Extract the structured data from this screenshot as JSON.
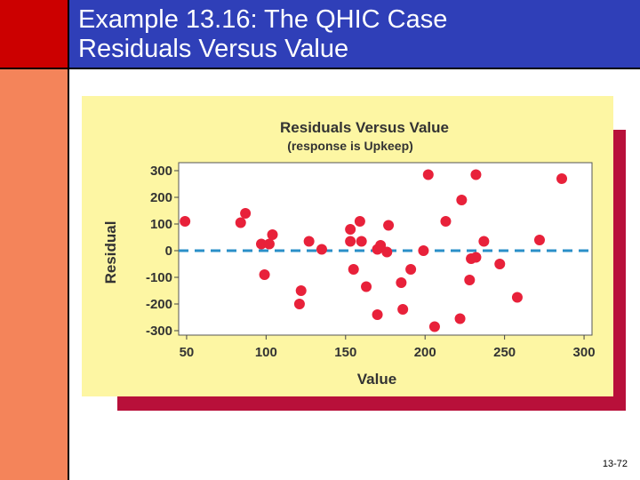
{
  "slide": {
    "title_line1": "Example 13.16: The QHIC Case",
    "title_line2": "Residuals Versus Value",
    "page_number": "13-72"
  },
  "colors": {
    "corner": "#cc0000",
    "left_bar": "#f4845a",
    "title_bar": "#2f3fb8",
    "panel_fill": "#fdf6a3",
    "panel_shadow": "#b8103a",
    "points": "#e8213a",
    "zero_line": "#2a8fc8"
  },
  "chart_data": {
    "type": "scatter",
    "title": "Residuals Versus Value",
    "subtitle": "(response is Upkeep)",
    "xlabel": "Value",
    "ylabel": "Residual",
    "xlim": [
      45,
      305
    ],
    "ylim": [
      -325,
      320
    ],
    "xticks": [
      50,
      100,
      150,
      200,
      250,
      300
    ],
    "yticks": [
      300,
      200,
      100,
      0,
      -100,
      -200,
      -300
    ],
    "ytick_labels": [
      "300",
      "200",
      "100",
      "0",
      "-100",
      "-200",
      "-300"
    ],
    "reference_line_y": 0,
    "grid": false,
    "points": [
      {
        "x": 49,
        "y": 110
      },
      {
        "x": 84,
        "y": 105
      },
      {
        "x": 87,
        "y": 140
      },
      {
        "x": 97,
        "y": 25
      },
      {
        "x": 99,
        "y": -90
      },
      {
        "x": 102,
        "y": 25
      },
      {
        "x": 104,
        "y": 60
      },
      {
        "x": 121,
        "y": -200
      },
      {
        "x": 122,
        "y": -150
      },
      {
        "x": 127,
        "y": 35
      },
      {
        "x": 135,
        "y": 5
      },
      {
        "x": 153,
        "y": 35
      },
      {
        "x": 153,
        "y": 80
      },
      {
        "x": 155,
        "y": -70
      },
      {
        "x": 159,
        "y": 110
      },
      {
        "x": 160,
        "y": 35
      },
      {
        "x": 163,
        "y": -135
      },
      {
        "x": 170,
        "y": 5
      },
      {
        "x": 170,
        "y": -240
      },
      {
        "x": 172,
        "y": 20
      },
      {
        "x": 176,
        "y": -5
      },
      {
        "x": 177,
        "y": 95
      },
      {
        "x": 185,
        "y": -120
      },
      {
        "x": 186,
        "y": -220
      },
      {
        "x": 191,
        "y": -70
      },
      {
        "x": 199,
        "y": 0
      },
      {
        "x": 202,
        "y": 285
      },
      {
        "x": 206,
        "y": -285
      },
      {
        "x": 213,
        "y": 110
      },
      {
        "x": 222,
        "y": -255
      },
      {
        "x": 223,
        "y": 190
      },
      {
        "x": 228,
        "y": -110
      },
      {
        "x": 229,
        "y": -30
      },
      {
        "x": 232,
        "y": -25
      },
      {
        "x": 232,
        "y": 285
      },
      {
        "x": 237,
        "y": 35
      },
      {
        "x": 247,
        "y": -50
      },
      {
        "x": 258,
        "y": -175
      },
      {
        "x": 272,
        "y": 40
      },
      {
        "x": 286,
        "y": 270
      }
    ]
  }
}
